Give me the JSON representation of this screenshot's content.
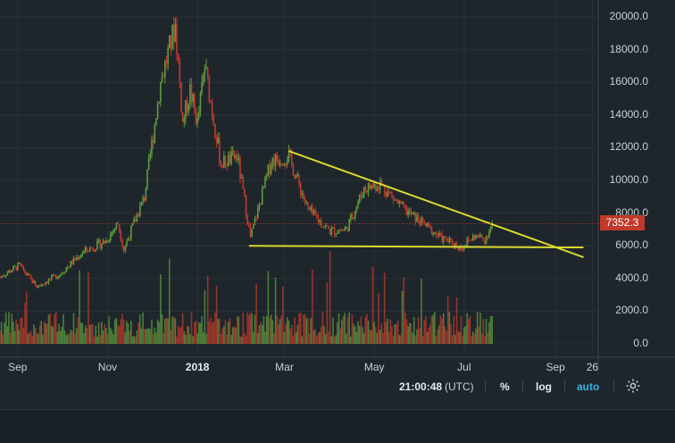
{
  "chart_data": {
    "type": "candlestick",
    "title": "",
    "yaxis": {
      "ticks": [
        "20000.0",
        "18000.0",
        "16000.0",
        "14000.0",
        "12000.0",
        "10000.0",
        "8000.0",
        "6000.0",
        "4000.0",
        "2000.0",
        "0.0"
      ],
      "tick_values": [
        20000,
        18000,
        16000,
        14000,
        12000,
        10000,
        8000,
        6000,
        4000,
        2000,
        0
      ],
      "ylim": [
        -400,
        21200
      ]
    },
    "xaxis": {
      "ticks": [
        "Sep",
        "Nov",
        "2018",
        "Mar",
        "May",
        "Jul",
        "Sep",
        "26"
      ],
      "bold_ticks": [
        "2018"
      ],
      "xlim": [
        "2017-08-20",
        "2018-09-30"
      ]
    },
    "last_price": "7352.3",
    "price_keypoints": [
      [
        "2017-08-20",
        4100
      ],
      [
        "2017-09-02",
        4800
      ],
      [
        "2017-09-14",
        3500
      ],
      [
        "2017-09-30",
        4300
      ],
      [
        "2017-10-15",
        5600
      ],
      [
        "2017-10-31",
        6300
      ],
      [
        "2017-11-08",
        7400
      ],
      [
        "2017-11-12",
        5800
      ],
      [
        "2017-11-26",
        9000
      ],
      [
        "2017-12-07",
        16000
      ],
      [
        "2017-12-17",
        19500
      ],
      [
        "2017-12-22",
        13500
      ],
      [
        "2017-12-27",
        15500
      ],
      [
        "2018-01-01",
        13500
      ],
      [
        "2018-01-06",
        17000
      ],
      [
        "2018-01-17",
        11000
      ],
      [
        "2018-01-28",
        11500
      ],
      [
        "2018-02-06",
        6500
      ],
      [
        "2018-02-20",
        11200
      ],
      [
        "2018-03-04",
        11500
      ],
      [
        "2018-03-17",
        8200
      ],
      [
        "2018-04-01",
        6900
      ],
      [
        "2018-04-12",
        7000
      ],
      [
        "2018-04-24",
        9500
      ],
      [
        "2018-05-05",
        9800
      ],
      [
        "2018-05-20",
        8300
      ],
      [
        "2018-06-01",
        7500
      ],
      [
        "2018-06-15",
        6500
      ],
      [
        "2018-06-29",
        5900
      ],
      [
        "2018-07-08",
        6600
      ],
      [
        "2018-07-15",
        6400
      ],
      [
        "2018-07-20",
        7352
      ]
    ],
    "trendlines": [
      {
        "from": [
          "2018-02-05",
          6000
        ],
        "to": [
          "2018-09-20",
          5900
        ],
        "color": "#d9d92e"
      },
      {
        "from": [
          "2018-03-04",
          11800
        ],
        "to": [
          "2018-09-20",
          5300
        ],
        "color": "#d9d92e"
      }
    ],
    "colors": {
      "up": "#5e9b3e",
      "down": "#c0392b",
      "trendline": "#d9d92e",
      "background": "#1e262c",
      "grid": "#2a3238"
    }
  },
  "toolbar": {
    "time": "21:00:48",
    "timezone": "(UTC)",
    "percent": "%",
    "log": "log",
    "auto": "auto",
    "settings_icon": "gear-icon"
  }
}
